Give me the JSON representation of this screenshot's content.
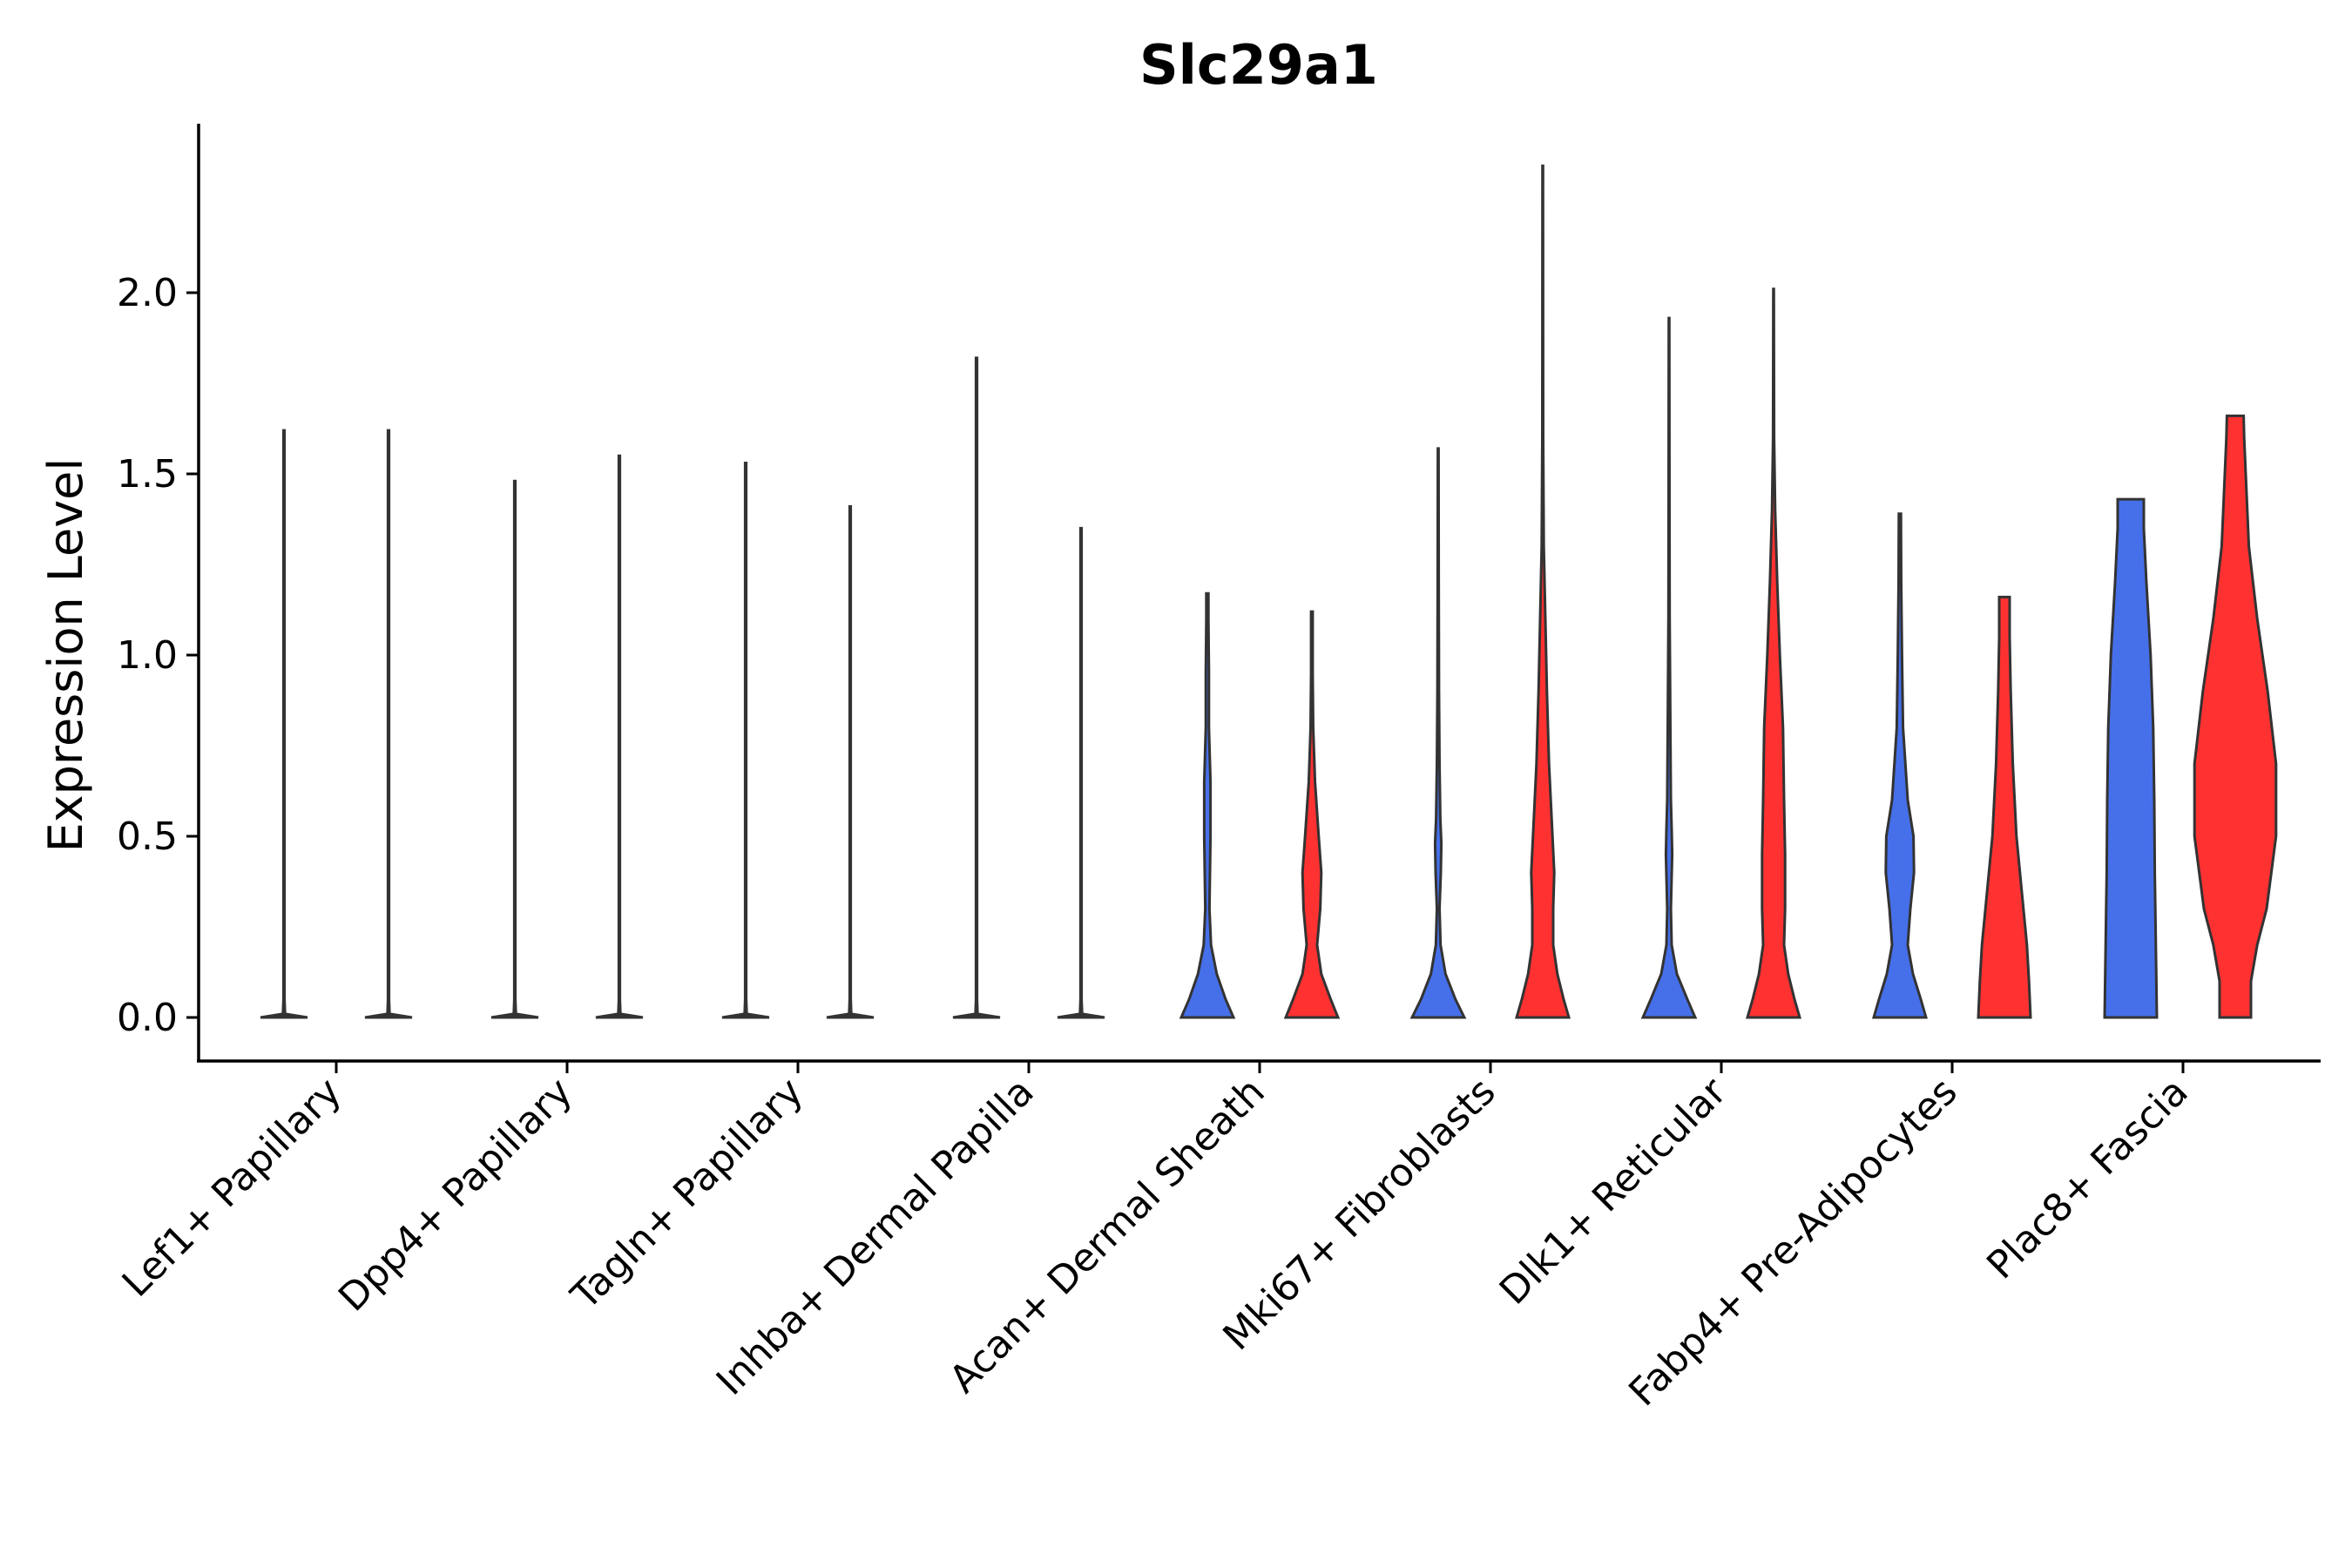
{
  "chart_data": {
    "type": "violin",
    "title": "Slc29a1",
    "xlabel": "",
    "ylabel": "Expression Level",
    "ylim": [
      -0.12,
      2.45
    ],
    "yticks": [
      "0.0",
      "0.5",
      "1.0",
      "1.5",
      "2.0"
    ],
    "grid": false,
    "legend": "none",
    "colors": {
      "group_a": "#4670ea",
      "group_b": "#ff3131",
      "zero": "#333333"
    },
    "categories": [
      "Lef1+ Papillary",
      "Dpp4+ Papillary",
      "Tagln+ Papillary",
      "Inhba+ Dermal Papilla",
      "Acan+ Dermal Sheath",
      "Mki67+ Fibroblasts",
      "Dlk1+ Reticular",
      "Fabp4+ Pre-Adipocytes",
      "Plac8+ Fascia"
    ],
    "violins": [
      {
        "category": "Lef1+ Papillary",
        "group": "a",
        "max": 1.62,
        "profile": [
          [
            0,
            0.45
          ],
          [
            0.01,
            0.02
          ],
          [
            0.05,
            0.01
          ],
          [
            1.62,
            0.01
          ]
        ]
      },
      {
        "category": "Lef1+ Papillary",
        "group": "b",
        "max": 1.62,
        "profile": [
          [
            0,
            0.45
          ],
          [
            0.01,
            0.02
          ],
          [
            0.05,
            0.01
          ],
          [
            1.62,
            0.01
          ]
        ]
      },
      {
        "category": "Dpp4+ Papillary",
        "group": "a",
        "max": 1.48,
        "profile": [
          [
            0,
            0.45
          ],
          [
            0.01,
            0.02
          ],
          [
            0.05,
            0.01
          ],
          [
            1.48,
            0.01
          ]
        ]
      },
      {
        "category": "Dpp4+ Papillary",
        "group": "b",
        "max": 1.55,
        "profile": [
          [
            0,
            0.45
          ],
          [
            0.01,
            0.02
          ],
          [
            0.05,
            0.01
          ],
          [
            1.55,
            0.01
          ]
        ]
      },
      {
        "category": "Tagln+ Papillary",
        "group": "a",
        "max": 1.53,
        "profile": [
          [
            0,
            0.45
          ],
          [
            0.01,
            0.02
          ],
          [
            0.05,
            0.01
          ],
          [
            1.53,
            0.01
          ]
        ]
      },
      {
        "category": "Tagln+ Papillary",
        "group": "b",
        "max": 1.41,
        "profile": [
          [
            0,
            0.45
          ],
          [
            0.01,
            0.02
          ],
          [
            0.05,
            0.01
          ],
          [
            1.41,
            0.01
          ]
        ]
      },
      {
        "category": "Inhba+ Dermal Papilla",
        "group": "a",
        "max": 1.82,
        "profile": [
          [
            0,
            0.45
          ],
          [
            0.01,
            0.02
          ],
          [
            0.05,
            0.01
          ],
          [
            1.82,
            0.01
          ]
        ]
      },
      {
        "category": "Inhba+ Dermal Papilla",
        "group": "b",
        "max": 1.35,
        "profile": [
          [
            0,
            0.45
          ],
          [
            0.01,
            0.02
          ],
          [
            0.05,
            0.01
          ],
          [
            1.35,
            0.01
          ]
        ]
      },
      {
        "category": "Acan+ Dermal Sheath",
        "group": "a",
        "max": 1.17,
        "profile": [
          [
            0,
            0.5
          ],
          [
            0.05,
            0.35
          ],
          [
            0.12,
            0.18
          ],
          [
            0.2,
            0.07
          ],
          [
            0.3,
            0.04
          ],
          [
            0.5,
            0.06
          ],
          [
            0.65,
            0.06
          ],
          [
            0.8,
            0.03
          ],
          [
            0.95,
            0.03
          ],
          [
            1.1,
            0.02
          ],
          [
            1.17,
            0.02
          ]
        ]
      },
      {
        "category": "Acan+ Dermal Sheath",
        "group": "b",
        "max": 1.12,
        "profile": [
          [
            0,
            0.5
          ],
          [
            0.05,
            0.36
          ],
          [
            0.12,
            0.18
          ],
          [
            0.2,
            0.1
          ],
          [
            0.3,
            0.16
          ],
          [
            0.4,
            0.18
          ],
          [
            0.5,
            0.13
          ],
          [
            0.65,
            0.06
          ],
          [
            0.8,
            0.025
          ],
          [
            0.95,
            0.015
          ],
          [
            1.1,
            0.015
          ],
          [
            1.12,
            0.015
          ]
        ]
      },
      {
        "category": "Mki67+ Fibroblasts",
        "group": "a",
        "max": 1.57,
        "profile": [
          [
            0,
            0.5
          ],
          [
            0.05,
            0.33
          ],
          [
            0.12,
            0.14
          ],
          [
            0.2,
            0.045
          ],
          [
            0.3,
            0.025
          ],
          [
            0.4,
            0.05
          ],
          [
            0.48,
            0.06
          ],
          [
            0.55,
            0.04
          ],
          [
            0.7,
            0.025
          ],
          [
            0.9,
            0.015
          ],
          [
            1.2,
            0.01
          ],
          [
            1.57,
            0.006
          ]
        ]
      },
      {
        "category": "Mki67+ Fibroblasts",
        "group": "b",
        "max": 2.35,
        "profile": [
          [
            0,
            0.5
          ],
          [
            0.05,
            0.4
          ],
          [
            0.12,
            0.28
          ],
          [
            0.2,
            0.2
          ],
          [
            0.3,
            0.2
          ],
          [
            0.4,
            0.22
          ],
          [
            0.55,
            0.17
          ],
          [
            0.7,
            0.12
          ],
          [
            0.9,
            0.08
          ],
          [
            1.1,
            0.05
          ],
          [
            1.3,
            0.02
          ],
          [
            1.6,
            0.008
          ],
          [
            2.35,
            0.005
          ]
        ]
      },
      {
        "category": "Dlk1+ Reticular",
        "group": "a",
        "max": 1.93,
        "profile": [
          [
            0,
            0.5
          ],
          [
            0.05,
            0.35
          ],
          [
            0.12,
            0.15
          ],
          [
            0.2,
            0.05
          ],
          [
            0.3,
            0.035
          ],
          [
            0.45,
            0.06
          ],
          [
            0.52,
            0.05
          ],
          [
            0.6,
            0.035
          ],
          [
            0.8,
            0.025
          ],
          [
            1.1,
            0.012
          ],
          [
            1.4,
            0.008
          ],
          [
            1.93,
            0.005
          ]
        ]
      },
      {
        "category": "Dlk1+ Reticular",
        "group": "b",
        "max": 2.01,
        "profile": [
          [
            0,
            0.5
          ],
          [
            0.05,
            0.4
          ],
          [
            0.12,
            0.28
          ],
          [
            0.2,
            0.2
          ],
          [
            0.3,
            0.22
          ],
          [
            0.45,
            0.22
          ],
          [
            0.6,
            0.2
          ],
          [
            0.8,
            0.18
          ],
          [
            1.0,
            0.12
          ],
          [
            1.2,
            0.07
          ],
          [
            1.4,
            0.03
          ],
          [
            1.6,
            0.01
          ],
          [
            2.01,
            0.005
          ]
        ]
      },
      {
        "category": "Fabp4+ Pre-Adipocytes",
        "group": "a",
        "max": 1.39,
        "profile": [
          [
            0,
            0.5
          ],
          [
            0.05,
            0.4
          ],
          [
            0.12,
            0.25
          ],
          [
            0.2,
            0.15
          ],
          [
            0.3,
            0.2
          ],
          [
            0.4,
            0.27
          ],
          [
            0.5,
            0.26
          ],
          [
            0.6,
            0.15
          ],
          [
            0.8,
            0.06
          ],
          [
            1.0,
            0.04
          ],
          [
            1.2,
            0.025
          ],
          [
            1.39,
            0.02
          ]
        ]
      },
      {
        "category": "Fabp4+ Pre-Adipocytes",
        "group": "b",
        "max": 1.16,
        "profile": [
          [
            0,
            0.5
          ],
          [
            0.1,
            0.47
          ],
          [
            0.2,
            0.43
          ],
          [
            0.35,
            0.33
          ],
          [
            0.5,
            0.23
          ],
          [
            0.7,
            0.16
          ],
          [
            0.9,
            0.12
          ],
          [
            1.05,
            0.1
          ],
          [
            1.16,
            0.1
          ]
        ]
      },
      {
        "category": "Plac8+ Fascia",
        "group": "a",
        "max": 1.43,
        "profile": [
          [
            0,
            0.5
          ],
          [
            0.2,
            0.48
          ],
          [
            0.4,
            0.46
          ],
          [
            0.6,
            0.45
          ],
          [
            0.8,
            0.43
          ],
          [
            1.0,
            0.38
          ],
          [
            1.2,
            0.3
          ],
          [
            1.35,
            0.25
          ],
          [
            1.43,
            0.25
          ]
        ]
      },
      {
        "category": "Plac8+ Fascia",
        "group": "b",
        "max": 1.66,
        "profile": [
          [
            0,
            0.3
          ],
          [
            0.1,
            0.3
          ],
          [
            0.2,
            0.42
          ],
          [
            0.3,
            0.6
          ],
          [
            0.5,
            0.78
          ],
          [
            0.7,
            0.78
          ],
          [
            0.9,
            0.62
          ],
          [
            1.1,
            0.42
          ],
          [
            1.3,
            0.26
          ],
          [
            1.5,
            0.2
          ],
          [
            1.6,
            0.17
          ],
          [
            1.66,
            0.16
          ]
        ]
      }
    ]
  }
}
